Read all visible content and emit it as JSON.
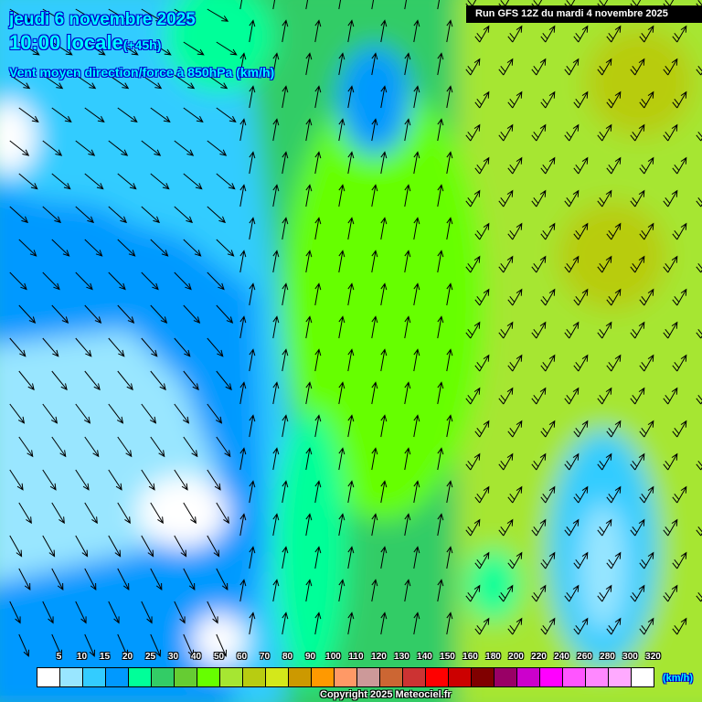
{
  "header": {
    "date": "jeudi 6 novembre 2025",
    "time": "10:00 locale",
    "lead": "(+45h)",
    "parameter": "Vent moyen direction/force à 850hPa (km/h)",
    "run": "Run GFS 12Z du mardi 4 novembre 2025"
  },
  "legend": {
    "unit": "(km/h)",
    "labels": [
      "5",
      "10",
      "15",
      "20",
      "25",
      "30",
      "40",
      "50",
      "60",
      "70",
      "80",
      "90",
      "100",
      "110",
      "120",
      "130",
      "140",
      "150",
      "160",
      "180",
      "200",
      "220",
      "240",
      "260",
      "280",
      "300",
      "320"
    ],
    "colors": [
      "#ffffff",
      "#99e6ff",
      "#33ccff",
      "#0099ff",
      "#00ff99",
      "#33cc66",
      "#66cc33",
      "#66ff00",
      "#a6e632",
      "#b8cc11",
      "#d4e81a",
      "#cc9900",
      "#ff9900",
      "#ff9966",
      "#cc9999",
      "#cc6633",
      "#cc3333",
      "#ff0000",
      "#cc0000",
      "#800000",
      "#990066",
      "#cc00cc",
      "#ff00ff",
      "#ff55ff",
      "#ff88ff",
      "#ffaaff",
      "#ffffff"
    ]
  },
  "footer": {
    "copyright": "Copyright 2025 Meteociel.fr"
  }
}
